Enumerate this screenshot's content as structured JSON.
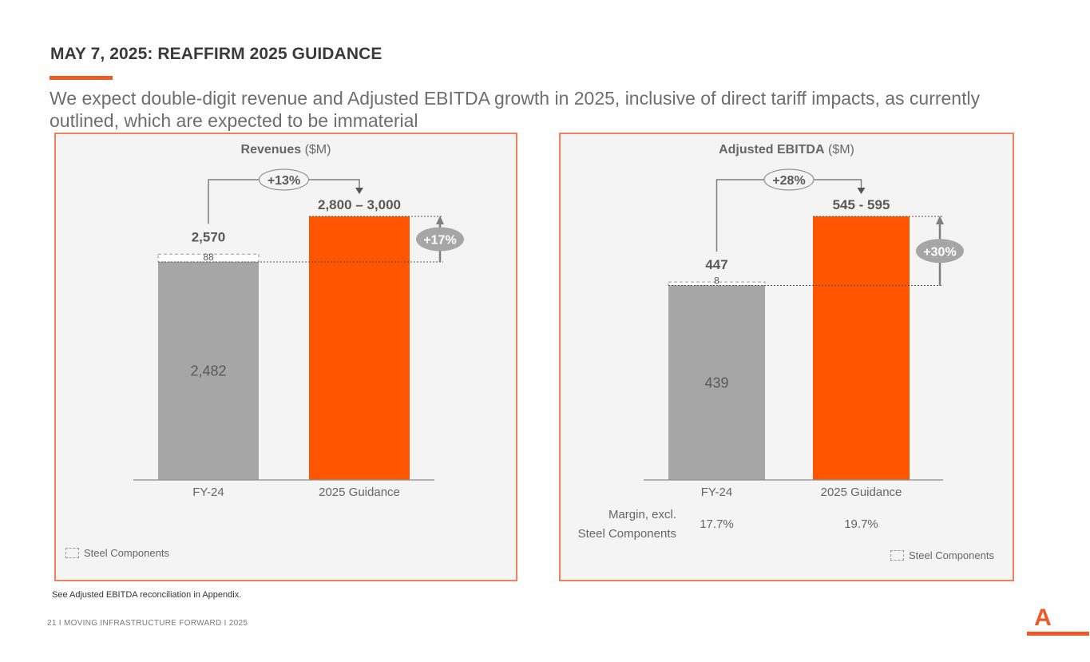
{
  "header": {
    "title": "MAY 7, 2025: REAFFIRM 2025 GUIDANCE",
    "subtitle": "We expect double-digit revenue and Adjusted EBITDA growth in 2025, inclusive of direct tariff impacts, as currently outlined, which are expected to be immaterial"
  },
  "colors": {
    "accent": "#ee5a24",
    "guidance_bar": "#ff5400",
    "fy_bar": "#a6a6a6",
    "panel_border": "#ef8160",
    "panel_bg": "#f4f4f4"
  },
  "chart_data": [
    {
      "type": "bar",
      "title_bold": "Revenues",
      "title_unit": "($M)",
      "categories": [
        "FY-24",
        "2025 Guidance"
      ],
      "series": [
        {
          "name": "Base",
          "values": [
            2482,
            null
          ]
        },
        {
          "name": "Steel Components",
          "values": [
            88,
            null
          ]
        },
        {
          "name": "Guidance Low",
          "values": [
            null,
            2800
          ]
        },
        {
          "name": "Guidance High",
          "values": [
            null,
            3000
          ]
        }
      ],
      "labels": {
        "fy_total": "2,570",
        "fy_base": "2,482",
        "fy_steel": "88",
        "guidance": "2,800 – 3,000"
      },
      "growth_total": "+13%",
      "growth_excl": "+17%",
      "legend": "Steel Components",
      "ylim": [
        0,
        3000
      ]
    },
    {
      "type": "bar",
      "title_bold": "Adjusted EBITDA",
      "title_unit": "($M)",
      "categories": [
        "FY-24",
        "2025 Guidance"
      ],
      "series": [
        {
          "name": "Base",
          "values": [
            439,
            null
          ]
        },
        {
          "name": "Steel Components",
          "values": [
            8,
            null
          ]
        },
        {
          "name": "Guidance Low",
          "values": [
            null,
            545
          ]
        },
        {
          "name": "Guidance High",
          "values": [
            null,
            595
          ]
        }
      ],
      "labels": {
        "fy_total": "447",
        "fy_base": "439",
        "fy_steel": "8",
        "guidance": "545 - 595"
      },
      "growth_total": "+28%",
      "growth_excl": "+30%",
      "margin_label_1": "Margin, excl.",
      "margin_label_2": "Steel Components",
      "margins": [
        "17.7%",
        "19.7%"
      ],
      "legend": "Steel Components",
      "ylim": [
        0,
        595
      ]
    }
  ],
  "footnote": "See Adjusted EBITDA reconciliation in Appendix.",
  "footer": "21 I   MOVING INFRASTRUCTURE FORWARD   I   2025",
  "logo": {
    "glyph": "A"
  }
}
